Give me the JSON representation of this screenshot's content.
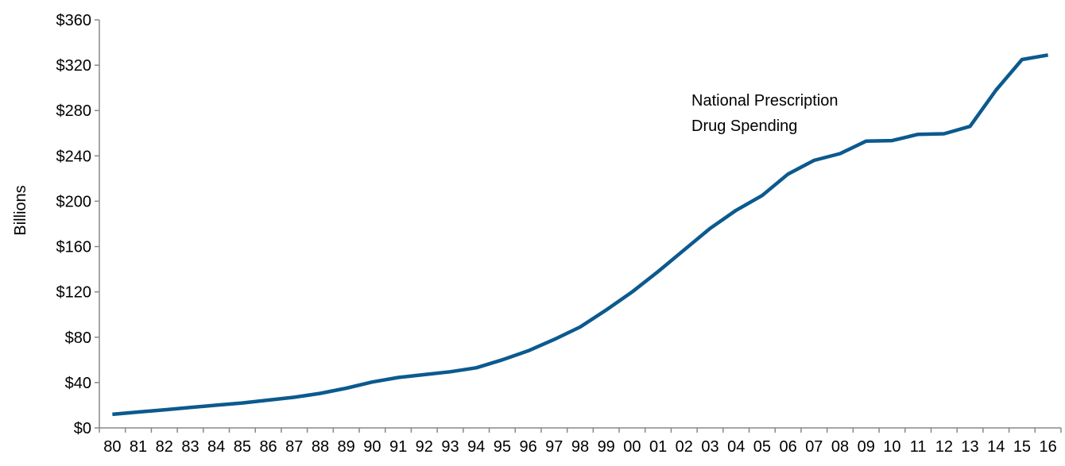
{
  "chart_data": {
    "type": "line",
    "y_label": "Billions",
    "annotation": [
      "National Prescription",
      "Drug Spending"
    ],
    "categories": [
      "80",
      "81",
      "82",
      "83",
      "84",
      "85",
      "86",
      "87",
      "88",
      "89",
      "90",
      "91",
      "92",
      "93",
      "94",
      "95",
      "96",
      "97",
      "98",
      "99",
      "00",
      "01",
      "02",
      "03",
      "04",
      "05",
      "06",
      "07",
      "08",
      "09",
      "10",
      "11",
      "12",
      "13",
      "14",
      "15",
      "16"
    ],
    "series": [
      {
        "color": "#0b5a8e",
        "values": [
          12,
          14,
          16,
          18,
          20,
          22,
          24.5,
          27,
          30.5,
          35,
          40.5,
          44.5,
          47,
          49.5,
          53,
          60,
          68,
          78,
          89,
          104,
          120,
          138,
          157,
          176,
          192,
          205,
          224,
          236,
          242,
          253,
          253.5,
          259,
          259.5,
          266,
          298,
          325,
          329
        ]
      }
    ],
    "ylim": [
      0,
      360
    ],
    "yticks": [
      {
        "value": 0,
        "label": "$0"
      },
      {
        "value": 40,
        "label": "$40"
      },
      {
        "value": 80,
        "label": "$80"
      },
      {
        "value": 120,
        "label": "$120"
      },
      {
        "value": 160,
        "label": "$160"
      },
      {
        "value": 200,
        "label": "$200"
      },
      {
        "value": 240,
        "label": "$240"
      },
      {
        "value": 280,
        "label": "$280"
      },
      {
        "value": 320,
        "label": "$320"
      },
      {
        "value": 360,
        "label": "$360"
      }
    ]
  }
}
